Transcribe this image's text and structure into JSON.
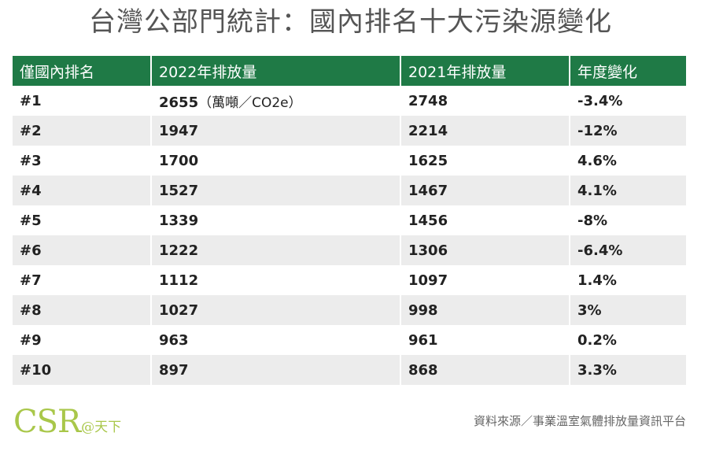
{
  "title": "台灣公部門統計：國內排名十大污染源變化",
  "chart_data": {
    "type": "table",
    "columns": [
      "僅國內排名",
      "2022年排放量",
      "2021年排放量",
      "年度變化"
    ],
    "unit_note": "（萬噸／CO2e）",
    "rows": [
      [
        "#1",
        "2655",
        "2748",
        "-3.4%"
      ],
      [
        "#2",
        "1947",
        "2214",
        "-12%"
      ],
      [
        "#3",
        "1700",
        "1625",
        "4.6%"
      ],
      [
        "#4",
        "1527",
        "1467",
        "4.1%"
      ],
      [
        "#5",
        "1339",
        "1456",
        "-8%"
      ],
      [
        "#6",
        "1222",
        "1306",
        "-6.4%"
      ],
      [
        "#7",
        "1112",
        "1097",
        "1.4%"
      ],
      [
        "#8",
        "1027",
        "998",
        "3%"
      ],
      [
        "#9",
        "963",
        "961",
        "0.2%"
      ],
      [
        "#10",
        "897",
        "868",
        "3.3%"
      ]
    ]
  },
  "footer": {
    "logo_text": "CSR",
    "logo_suffix": "@天下",
    "source": "資料來源／事業溫室氣體排放量資訊平台"
  },
  "colors": {
    "header_bg": "#1f7a46",
    "row_alt_bg": "#ececec",
    "logo": "#a9c74a"
  }
}
